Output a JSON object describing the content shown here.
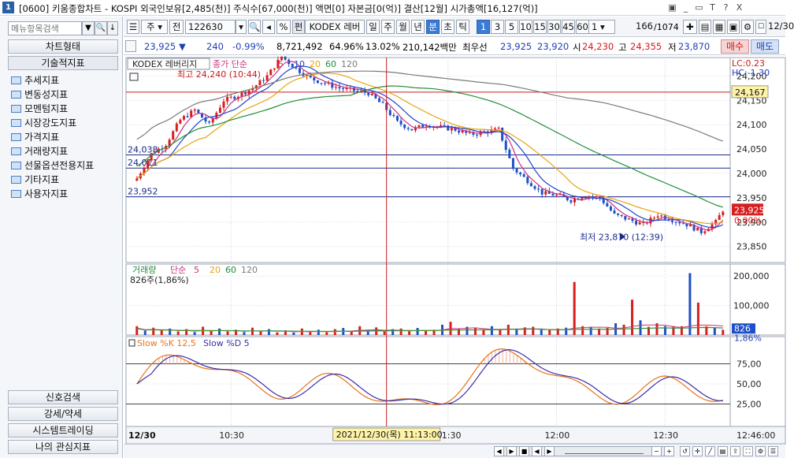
{
  "window": {
    "number": "1",
    "title": "[0600] 키움종합차트 - KOSPI 외국인보유[2,485(천)] 주식수[67,000(천)] 액면[0] 자본금[0(억)] 결산[12월] 시가총액[16,127(억)]",
    "controls": [
      "▣",
      "_",
      "▭",
      "T",
      "?",
      "X"
    ]
  },
  "left_panel": {
    "search_placeholder": "메뉴항목검색",
    "search_buttons": [
      "▼",
      "🔍",
      "↓"
    ],
    "chart_type_label": "차트형태",
    "tech_label": "기술적지표",
    "tree_items": [
      "추세지표",
      "변동성지표",
      "모멘텀지표",
      "시장강도지표",
      "가격지표",
      "거래량지표",
      "선물옵션전용지표",
      "기타지표",
      "사용자지표"
    ],
    "bottom_buttons": [
      "신호검색",
      "강세/약세",
      "시스템트레이딩",
      "나의 관심지표"
    ]
  },
  "toolbar": {
    "period_select": "주",
    "market_select": "전",
    "code_input": "122630",
    "percent": "%",
    "name_label": "KODEX 레버",
    "periods": [
      "일",
      "주",
      "월",
      "년",
      "분",
      "초",
      "틱"
    ],
    "active_period": "분",
    "intervals": [
      "1",
      "3",
      "5",
      "10",
      "15",
      "30",
      "45",
      "60"
    ],
    "active_interval": "1",
    "unit_select": "1",
    "page_count": "166",
    "page_total": "/1074",
    "date_select": "12/30"
  },
  "quote": {
    "price": "23,925",
    "arrow": "▼",
    "change": "240",
    "change_pct": "-0.99%",
    "volume": "8,721,492",
    "ratio1": "64.96%",
    "ratio2": "13.02%",
    "amount": "210,142백만",
    "best_label": "최우선",
    "ask": "23,925",
    "bid": "23,920",
    "open_label": "시",
    "open": "24,230",
    "high_label": "고",
    "high": "24,355",
    "low_label": "저",
    "low": "23,870",
    "buy_label": "매수",
    "sell_label": "매도"
  },
  "price_panel": {
    "legend_name": "KODEX 레버리지",
    "legend_ma": "종가 단순",
    "ma_periods": [
      "5",
      "10",
      "20",
      "60",
      "120"
    ],
    "ma_colors": [
      "#c8327a",
      "#2244cc",
      "#e8a411",
      "#1f8f3a",
      "#7a7a7a"
    ],
    "lc_label": "LC:0.23",
    "hc_label": "HC:-1.30",
    "high_annot": "최고 24,240 (10:44)",
    "low_annot": "최저 23,870 (12:39)",
    "hlines": [
      "24,038",
      "24,011",
      "23,952"
    ],
    "ref_price_label": "24,167",
    "current_price_label": "23,925",
    "current_pct_label": "0.00%",
    "axis_ticks": [
      "24,200",
      "24,150",
      "24,100",
      "24,050",
      "24,000",
      "23,950",
      "23,900",
      "23,850"
    ],
    "axis_tick_values": [
      24200,
      24150,
      24100,
      24050,
      24000,
      23950,
      23900,
      23850
    ],
    "ref_price": 24167,
    "current_price": 23925,
    "hline_values": [
      24038,
      24011,
      23952
    ],
    "y_range": [
      23830,
      24225
    ]
  },
  "volume_panel": {
    "legend_name": "거래량",
    "legend_ma": "단순",
    "ma_periods": [
      "5",
      "20",
      "60",
      "120"
    ],
    "ma_colors": [
      "#c8327a",
      "#e8a411",
      "#1f8f3a",
      "#7a7a7a"
    ],
    "sub_label": "826주(1,86%)",
    "axis_ticks": [
      "200,000",
      "100,000"
    ],
    "axis_tick_values": [
      200000,
      100000
    ],
    "current_label": "826",
    "current_pct": "1,86%",
    "y_range": [
      0,
      230000
    ]
  },
  "stoch_panel": {
    "legend_k": "Slow %K 12,5",
    "legend_d": "Slow %D 5",
    "axis_ticks": [
      "75,00",
      "50,00",
      "25,00"
    ],
    "axis_tick_values": [
      75,
      50,
      25
    ],
    "y_range": [
      0,
      100
    ]
  },
  "time_axis": {
    "date_label": "12/30",
    "ticks": [
      "10:30",
      "11:30",
      "12:00",
      "12:30"
    ],
    "tick_minutes": [
      630,
      690,
      720,
      750
    ],
    "cursor_label": "2021/12/30(목) 11:13:00",
    "cursor_minute": 673,
    "end_label": "12:46:00"
  },
  "chart_data": [
    {
      "type": "line",
      "name": "price",
      "x_start_minute": 604,
      "x_end_minute": 766,
      "y_points": [
        [
          604,
          23990
        ],
        [
          608,
          24040
        ],
        [
          612,
          24060
        ],
        [
          616,
          24110
        ],
        [
          620,
          24130
        ],
        [
          624,
          24100
        ],
        [
          628,
          24150
        ],
        [
          632,
          24160
        ],
        [
          636,
          24175
        ],
        [
          640,
          24200
        ],
        [
          644,
          24240
        ],
        [
          648,
          24215
        ],
        [
          652,
          24195
        ],
        [
          656,
          24185
        ],
        [
          660,
          24175
        ],
        [
          664,
          24170
        ],
        [
          668,
          24165
        ],
        [
          672,
          24140
        ],
        [
          676,
          24105
        ],
        [
          680,
          24090
        ],
        [
          684,
          24100
        ],
        [
          688,
          24095
        ],
        [
          692,
          24090
        ],
        [
          696,
          24080
        ],
        [
          700,
          24085
        ],
        [
          704,
          24090
        ],
        [
          708,
          24010
        ],
        [
          712,
          23985
        ],
        [
          716,
          23960
        ],
        [
          720,
          23955
        ],
        [
          724,
          23945
        ],
        [
          728,
          23955
        ],
        [
          732,
          23950
        ],
        [
          736,
          23915
        ],
        [
          740,
          23905
        ],
        [
          744,
          23895
        ],
        [
          748,
          23915
        ],
        [
          752,
          23905
        ],
        [
          756,
          23895
        ],
        [
          760,
          23880
        ],
        [
          764,
          23900
        ],
        [
          766,
          23925
        ]
      ],
      "ylim": [
        23830,
        24225
      ]
    },
    {
      "type": "bar",
      "name": "volume",
      "values": [
        30000,
        15000,
        25000,
        18000,
        22000,
        12000,
        20000,
        10000,
        28000,
        15000,
        22000,
        12000,
        18000,
        10000,
        25000,
        14000,
        20000,
        9000,
        16000,
        8000,
        22000,
        12000,
        18000,
        10000,
        20000,
        24000,
        14000,
        30000,
        18000,
        26000,
        12000,
        20000,
        22000,
        14000,
        24000,
        16000,
        18000,
        35000,
        45000,
        20000,
        28000,
        24000,
        18000,
        30000,
        20000,
        35000,
        22000,
        26000,
        28000,
        18000,
        20000,
        22000,
        25000,
        180000,
        30000,
        28000,
        22000,
        24000,
        40000,
        35000,
        120000,
        50000,
        28000,
        40000,
        30000,
        30000,
        30000,
        210000,
        110000,
        30000,
        25000,
        18000
      ],
      "ylim": [
        0,
        230000
      ]
    }
  ]
}
